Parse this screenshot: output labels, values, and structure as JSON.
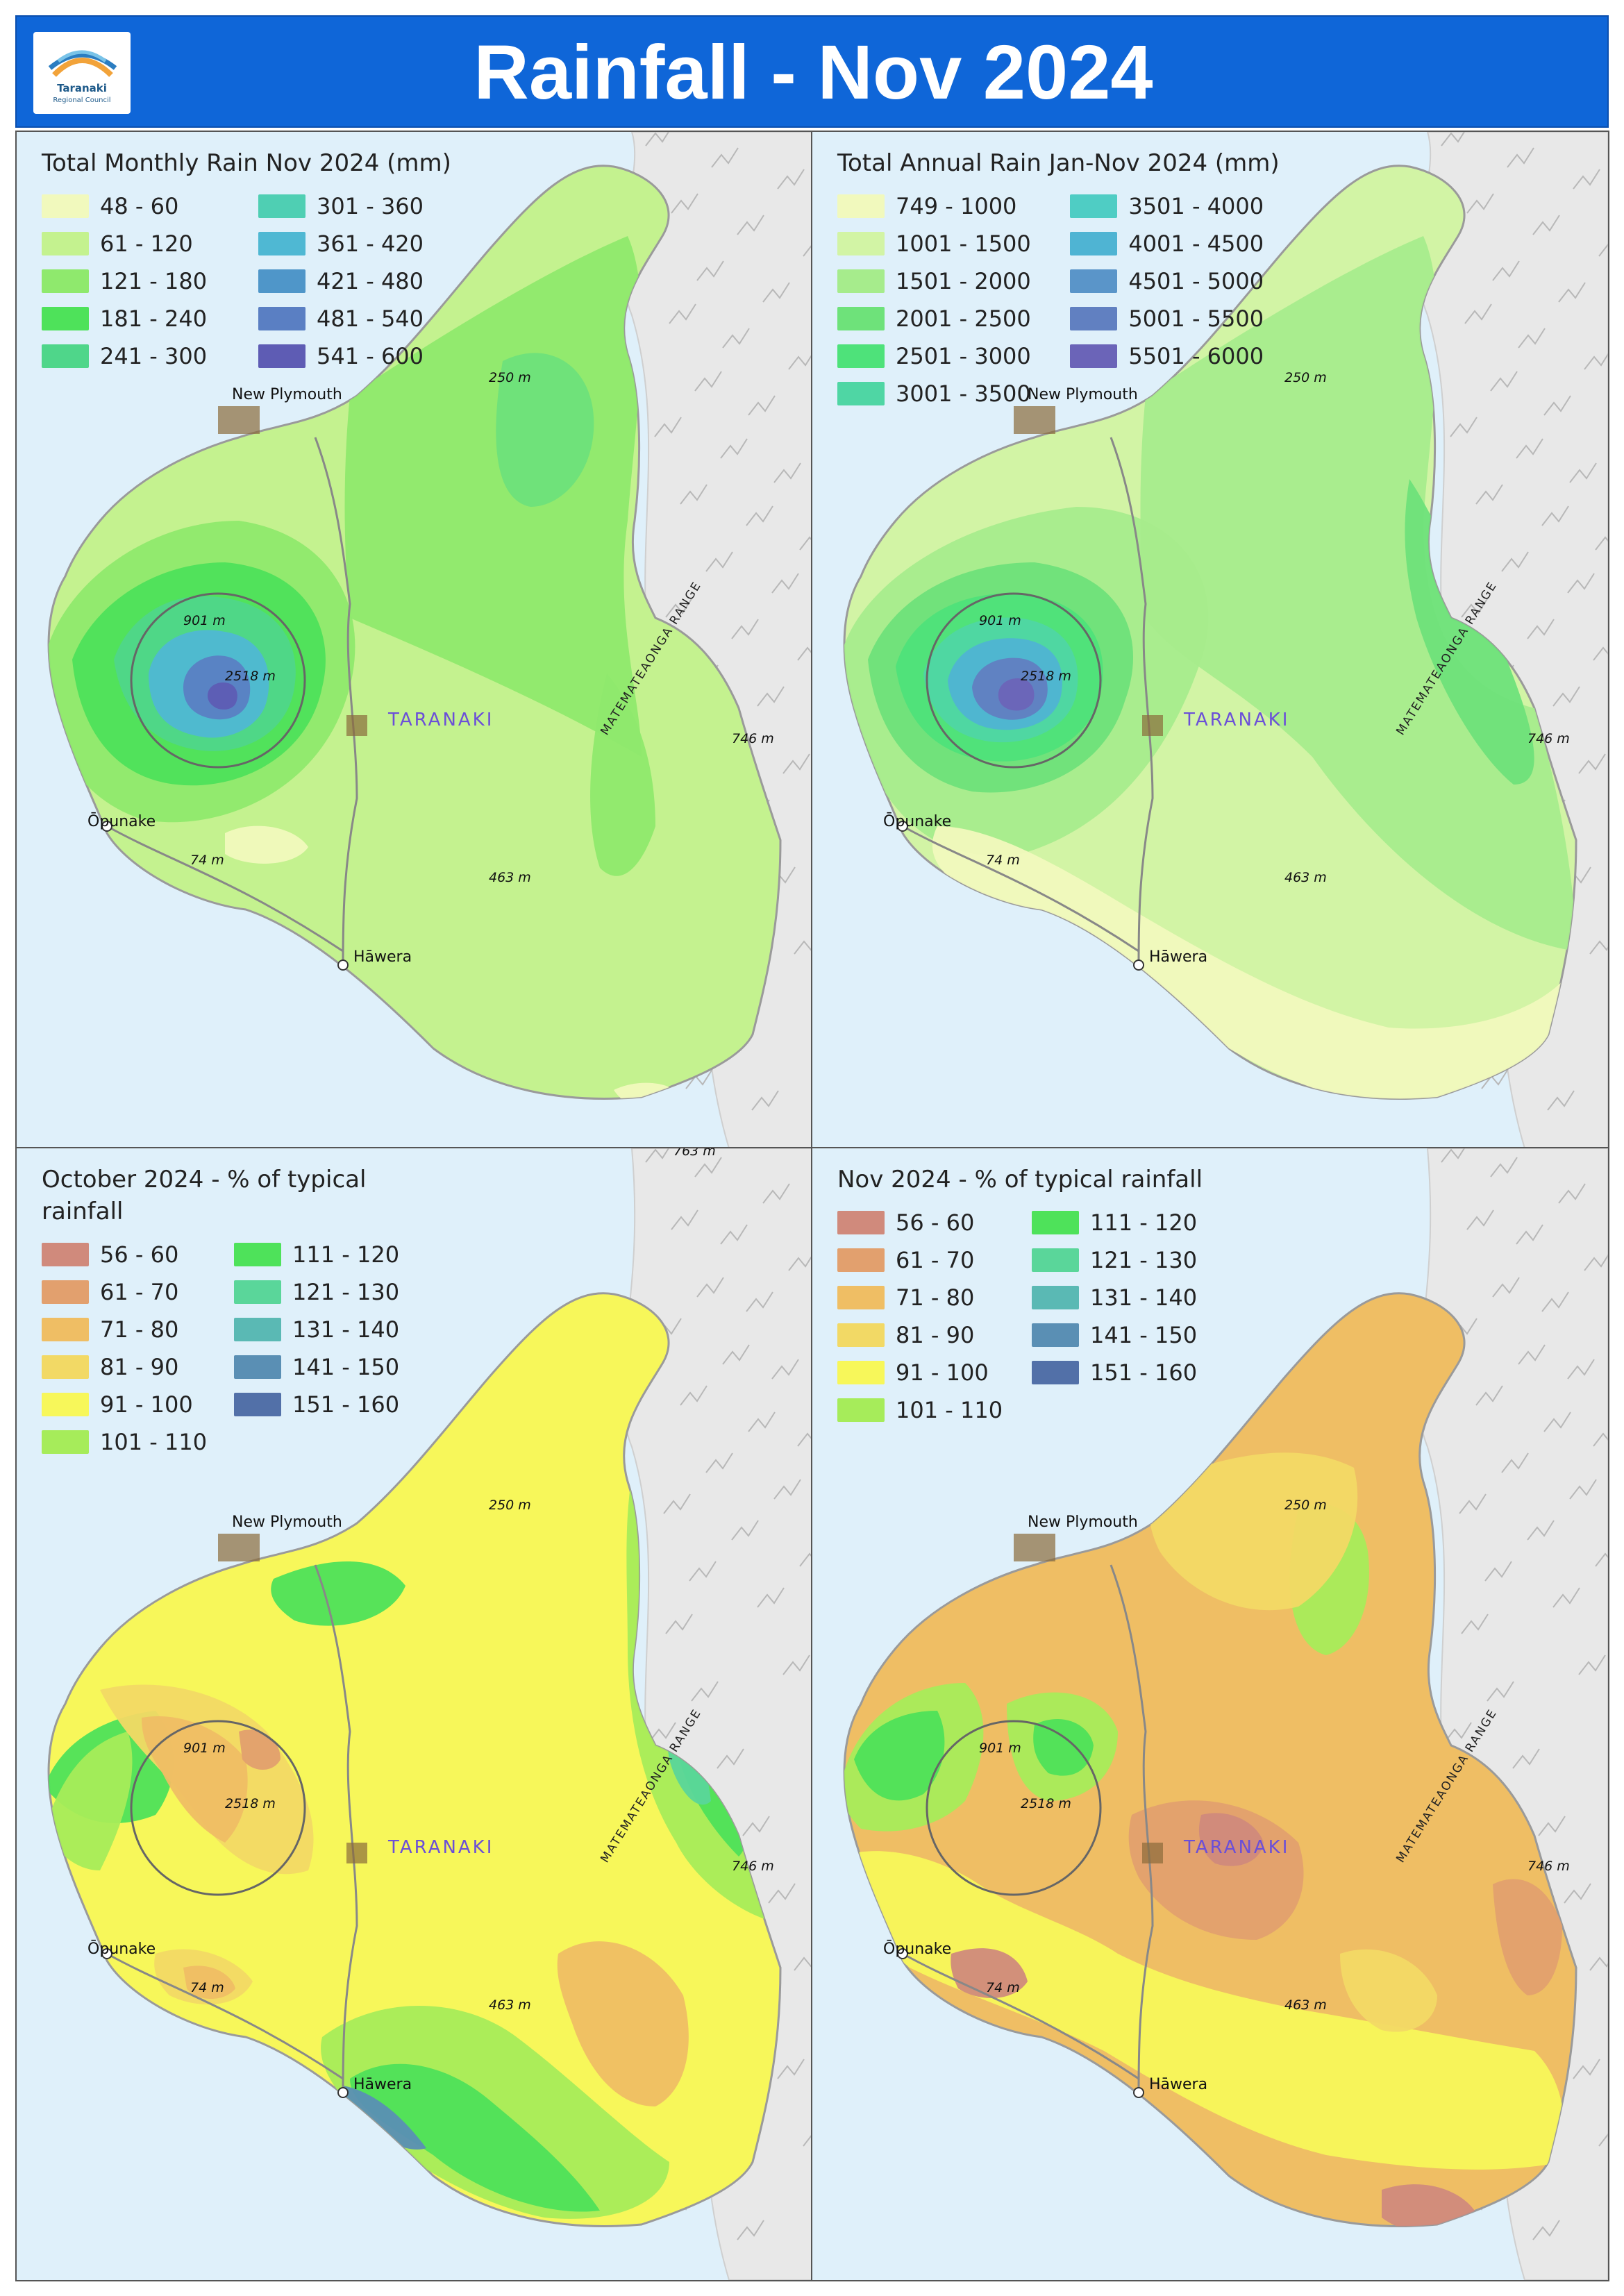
{
  "header": {
    "title": "Rainfall - Nov 2024",
    "logo_name": "Taranaki",
    "logo_sub": "Regional Council",
    "color": "#0f66d8"
  },
  "labels": {
    "new_plymouth": "New Plymouth",
    "opunake": "Ōpunake",
    "hawera": "Hāwera",
    "taranaki": "TARANAKI",
    "range": "MATEMATEAONGA RANGE",
    "e250": "250 m",
    "e746": "746 m",
    "e463": "463 m",
    "e74": "74 m",
    "e901": "901 m",
    "e2518": "2518 m",
    "e763": "763 m"
  },
  "panels": [
    {
      "title": "Total Monthly Rain Nov 2024 (mm)",
      "rows": 5,
      "legend": [
        {
          "label": "48 - 60",
          "color": "#f1f9bd"
        },
        {
          "label": "61 - 120",
          "color": "#c4f28f"
        },
        {
          "label": "121 - 180",
          "color": "#8fe96d"
        },
        {
          "label": "181 - 240",
          "color": "#4ee25a"
        },
        {
          "label": "241 - 300",
          "color": "#4fd68a"
        },
        {
          "label": "301 - 360",
          "color": "#4fcfb3"
        },
        {
          "label": "361 - 420",
          "color": "#4fb8d3"
        },
        {
          "label": "421 - 480",
          "color": "#4f96c9"
        },
        {
          "label": "481 - 540",
          "color": "#5a7fc3"
        },
        {
          "label": "541 - 600",
          "color": "#5e5cb4"
        }
      ]
    },
    {
      "title": "Total Annual Rain Jan-Nov 2024 (mm)",
      "rows": 6,
      "legend": [
        {
          "label": "749 - 1000",
          "color": "#f1f9bd"
        },
        {
          "label": "1001 - 1500",
          "color": "#d2f4a5"
        },
        {
          "label": "1501 - 2000",
          "color": "#a6ec8c"
        },
        {
          "label": "2001 - 2500",
          "color": "#6ee27a"
        },
        {
          "label": "2501 - 3000",
          "color": "#4ee27a"
        },
        {
          "label": "3001 - 3500",
          "color": "#4fd6a4"
        },
        {
          "label": "3501 - 4000",
          "color": "#4fcdc4"
        },
        {
          "label": "4001 - 4500",
          "color": "#4fb4d3"
        },
        {
          "label": "4501 - 5000",
          "color": "#5a95c9"
        },
        {
          "label": "5001 - 5500",
          "color": "#6180c1"
        },
        {
          "label": "5501 - 6000",
          "color": "#6b64b8"
        }
      ]
    },
    {
      "title": "October 2024 - % of typical rainfall",
      "rows": 6,
      "legend": [
        {
          "label": "56 - 60",
          "color": "#d08a7c"
        },
        {
          "label": "61 - 70",
          "color": "#e2a06e"
        },
        {
          "label": "71 - 80",
          "color": "#efbe64"
        },
        {
          "label": "81 - 90",
          "color": "#f2d965"
        },
        {
          "label": "91 - 100",
          "color": "#f7f75a"
        },
        {
          "label": "101 - 110",
          "color": "#a6ec5a"
        },
        {
          "label": "111 - 120",
          "color": "#4ee25a"
        },
        {
          "label": "121 - 130",
          "color": "#5ad69a"
        },
        {
          "label": "131 - 140",
          "color": "#5ab9b4"
        },
        {
          "label": "141 - 150",
          "color": "#5a8fb4"
        },
        {
          "label": "151 - 160",
          "color": "#5270a8"
        }
      ]
    },
    {
      "title": "Nov 2024 - % of typical rainfall",
      "rows": 6,
      "legend": [
        {
          "label": "56 - 60",
          "color": "#d08a7c"
        },
        {
          "label": "61 - 70",
          "color": "#e2a06e"
        },
        {
          "label": "71 - 80",
          "color": "#efbe64"
        },
        {
          "label": "81 - 90",
          "color": "#f2d965"
        },
        {
          "label": "91 - 100",
          "color": "#f7f75a"
        },
        {
          "label": "101 - 110",
          "color": "#a6ec5a"
        },
        {
          "label": "111 - 120",
          "color": "#4ee25a"
        },
        {
          "label": "121 - 130",
          "color": "#5ad69a"
        },
        {
          "label": "131 - 140",
          "color": "#5ab9b4"
        },
        {
          "label": "141 - 150",
          "color": "#5a8fb4"
        },
        {
          "label": "151 - 160",
          "color": "#5270a8"
        }
      ]
    }
  ]
}
